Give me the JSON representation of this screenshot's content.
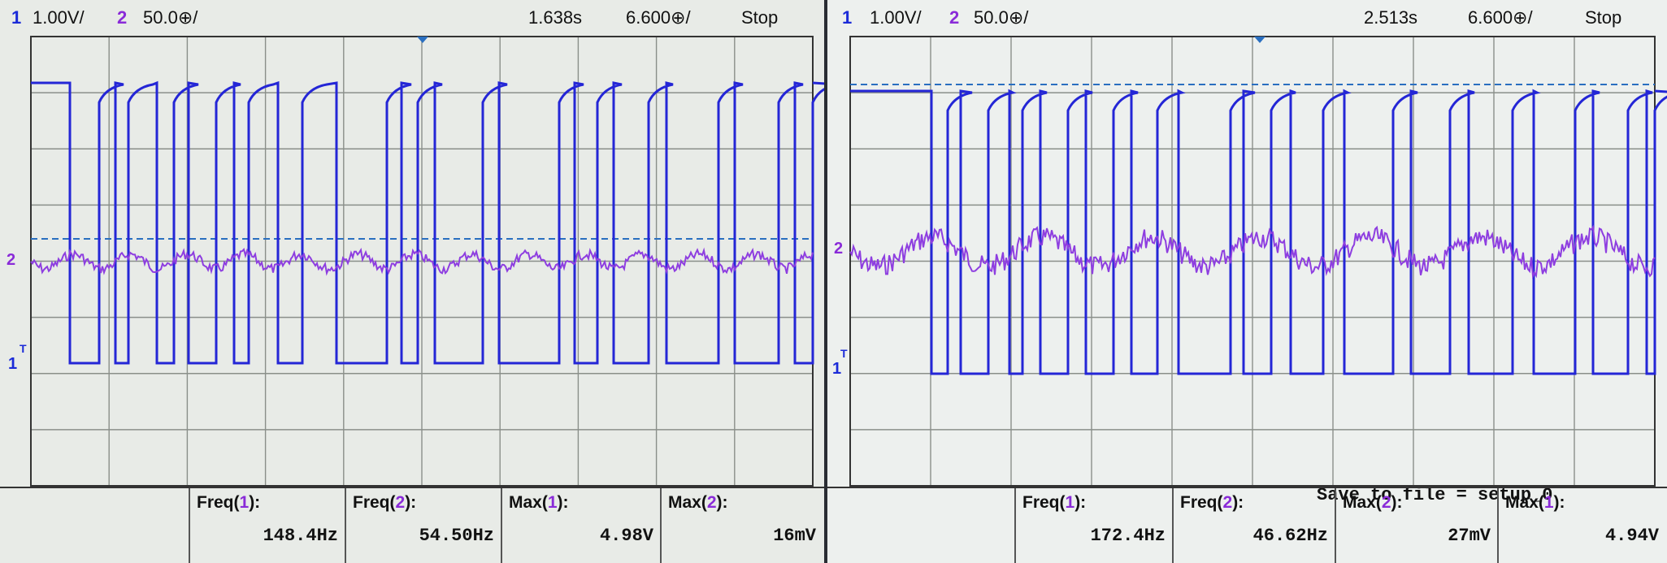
{
  "left_scope": {
    "status": {
      "ch1_num": "1",
      "ch1_scale": "1.00V/",
      "ch2_num": "2",
      "ch2_scale": "50.0⊕/",
      "time_pos": "1.638s",
      "time_scale": "6.600⊕/",
      "run_state": "Stop"
    },
    "measurements": [
      {
        "label_prefix": "Freq(",
        "channel": "1",
        "label_suffix": "):",
        "value": "148.4Hz"
      },
      {
        "label_prefix": "Freq(",
        "channel": "2",
        "label_suffix": "):",
        "value": "54.50Hz"
      },
      {
        "label_prefix": "Max(",
        "channel": "1",
        "label_suffix": "):",
        "value": "4.98V"
      },
      {
        "label_prefix": "Max(",
        "channel": "2",
        "label_suffix": "):",
        "value": "16mV"
      }
    ],
    "markers": {
      "ch2": "2",
      "ch1": "1",
      "trigger": "T"
    }
  },
  "right_scope": {
    "status": {
      "ch1_num": "1",
      "ch1_scale": "1.00V/",
      "ch2_num": "2",
      "ch2_scale": "50.0⊕/",
      "time_pos": "2.513s",
      "time_scale": "6.600⊕/",
      "run_state": "Stop"
    },
    "save_message": "Save to file = setup_0",
    "measurements": [
      {
        "label_prefix": "Freq(",
        "channel": "1",
        "label_suffix": "):",
        "value": "172.4Hz"
      },
      {
        "label_prefix": "Freq(",
        "channel": "2",
        "label_suffix": "):",
        "value": "46.62Hz"
      },
      {
        "label_prefix": "Max(",
        "channel": "2",
        "label_suffix": "):",
        "value": "27mV"
      },
      {
        "label_prefix": "Max(",
        "channel": "1",
        "label_suffix": "):",
        "value": "4.94V"
      }
    ],
    "markers": {
      "ch2": "2",
      "ch1": "1",
      "trigger": "T"
    }
  },
  "colors": {
    "ch1_trace": "#2426d6",
    "ch2_trace": "#8e3ee0",
    "grid": "#8a8f8a",
    "trigger_level": "#2a6fc0"
  }
}
